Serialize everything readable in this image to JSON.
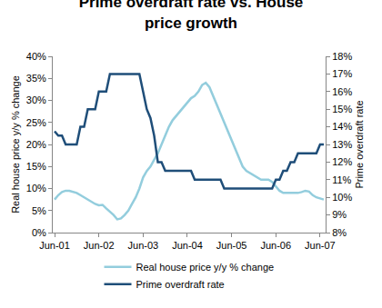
{
  "chart_data": {
    "type": "line",
    "title": "Prime overdraft rate vs. House price growth",
    "y_label": "Real house price y/y % change",
    "y2_label": "Prime overdraft rate",
    "categories": [
      "Jun-01",
      null,
      null,
      null,
      null,
      null,
      null,
      null,
      null,
      null,
      null,
      null,
      "Jun-02",
      null,
      null,
      null,
      null,
      null,
      null,
      null,
      null,
      null,
      null,
      null,
      "Jun-03",
      null,
      null,
      null,
      null,
      null,
      null,
      null,
      null,
      null,
      null,
      null,
      "Jun-04",
      null,
      null,
      null,
      null,
      null,
      null,
      null,
      null,
      null,
      null,
      null,
      "Jun-05",
      null,
      null,
      null,
      null,
      null,
      null,
      null,
      null,
      null,
      null,
      null,
      "Jun-06",
      null,
      null,
      null,
      null,
      null,
      null,
      null,
      null,
      null,
      null,
      null,
      "Jun-07",
      null
    ],
    "series": [
      {
        "name": "Real house price y/y % change",
        "color": "#93cddd",
        "values": [
          7.5,
          8.5,
          9.2,
          9.5,
          9.5,
          9.3,
          9,
          8.5,
          8,
          7.5,
          7,
          6.5,
          6.2,
          6.3,
          5.5,
          4.8,
          4,
          3,
          3.2,
          4,
          5,
          6.5,
          8,
          10,
          12.5,
          14,
          15,
          16.5,
          18,
          20,
          22,
          24,
          25.5,
          26.5,
          27.5,
          28.5,
          29.5,
          30.5,
          31,
          32,
          33.5,
          34,
          33,
          31,
          29,
          27,
          25,
          23,
          21,
          19,
          17,
          15,
          14,
          13.5,
          13,
          12.5,
          12,
          12,
          12,
          11.5,
          10.5,
          9.5,
          9,
          9,
          9,
          9,
          9,
          9.2,
          9.5,
          9.3,
          8.5,
          8,
          7.8,
          7.5
        ]
      },
      {
        "name": "Prime overdraft rate",
        "color": "#1f4e79",
        "axis": "y2",
        "values": [
          13.75,
          13.5,
          13.5,
          13,
          13,
          13,
          13,
          14,
          14,
          15,
          15,
          15,
          16,
          16,
          16,
          17,
          17,
          17,
          17,
          17,
          17,
          17,
          17,
          17,
          16,
          15,
          14.5,
          13.5,
          12,
          12,
          11.5,
          11.5,
          11.5,
          11.5,
          11.5,
          11.5,
          11.5,
          11.5,
          11,
          11,
          11,
          11,
          11,
          11,
          11,
          11,
          10.5,
          10.5,
          10.5,
          10.5,
          10.5,
          10.5,
          10.5,
          10.5,
          10.5,
          10.5,
          10.5,
          10.5,
          10.5,
          10.5,
          11,
          11,
          11.5,
          11.5,
          12,
          12,
          12.5,
          12.5,
          12.5,
          12.5,
          12.5,
          12.5,
          13,
          13
        ]
      }
    ],
    "ylim": [
      0,
      40
    ],
    "yticks": [
      {
        "value": 0,
        "label": "0%"
      },
      {
        "value": 5,
        "label": "5%"
      },
      {
        "value": 10,
        "label": "10%"
      },
      {
        "value": 15,
        "label": "15%"
      },
      {
        "value": 20,
        "label": "20%"
      },
      {
        "value": 25,
        "label": "25%"
      },
      {
        "value": 30,
        "label": "30%"
      },
      {
        "value": 35,
        "label": "35%"
      },
      {
        "value": 40,
        "label": "40%"
      }
    ],
    "y2lim": [
      8,
      18
    ],
    "y2ticks": [
      {
        "value": 8,
        "label": "8%"
      },
      {
        "value": 9,
        "label": "9%"
      },
      {
        "value": 10,
        "label": "10%"
      },
      {
        "value": 11,
        "label": "11%"
      },
      {
        "value": 12,
        "label": "12%"
      },
      {
        "value": 13,
        "label": "13%"
      },
      {
        "value": 14,
        "label": "14%"
      },
      {
        "value": 15,
        "label": "15%"
      },
      {
        "value": 16,
        "label": "16%"
      },
      {
        "value": 17,
        "label": "17%"
      },
      {
        "value": 18,
        "label": "18%"
      }
    ],
    "grid": false,
    "legend": "bottom"
  }
}
